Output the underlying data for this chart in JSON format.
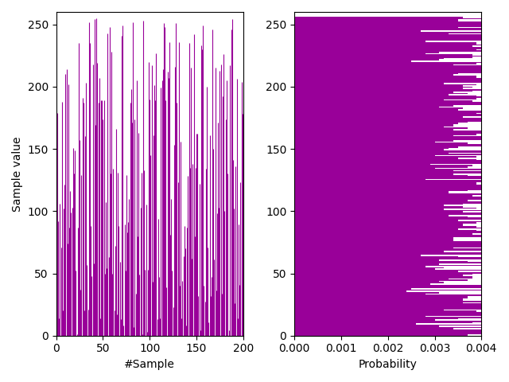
{
  "title": "",
  "left_xlabel": "#Sample",
  "left_ylabel": "Sample value",
  "right_xlabel": "Probability",
  "color": "#990099",
  "n_samples": 200,
  "hist_samples": 10000,
  "value_min": 0,
  "value_max": 256,
  "n_bins": 256,
  "seed": 42,
  "hist_seed": 123,
  "xlim_left": [
    0,
    200
  ],
  "ylim_left": [
    0,
    260
  ],
  "xlim_right": [
    0.0,
    0.004
  ],
  "ylim_right": [
    0,
    260
  ],
  "figsize": [
    6.4,
    4.8
  ],
  "dpi": 100
}
